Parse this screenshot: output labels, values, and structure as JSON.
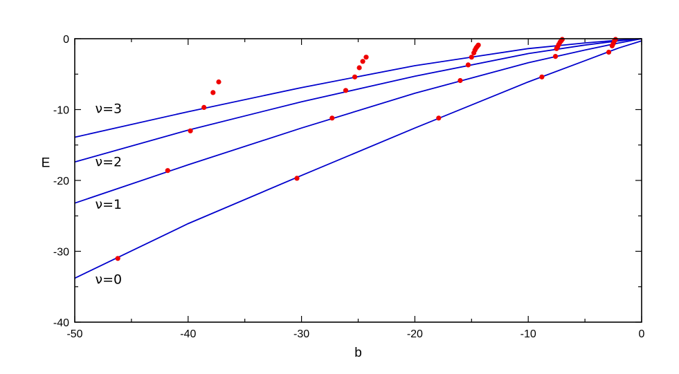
{
  "chart_data": {
    "type": "line",
    "xlabel": "b",
    "ylabel": "E",
    "xlim": [
      -50,
      0
    ],
    "ylim": [
      -40,
      0
    ],
    "xticks": [
      -50,
      -40,
      -30,
      -20,
      -10,
      0
    ],
    "yticks": [
      0,
      -10,
      -20,
      -30,
      -40
    ],
    "grid": false,
    "colors": {
      "curve": "#0000cc",
      "marker": "#ee0000",
      "frame": "#000000"
    },
    "series": [
      {
        "name": "ν=0",
        "x": [
          -50,
          -40,
          -30,
          -20,
          -10,
          -5,
          -2,
          0
        ],
        "y": [
          -33.8,
          -26.1,
          -19.3,
          -12.6,
          -6.1,
          -3.1,
          -1.3,
          -0.3
        ]
      },
      {
        "name": "ν=1",
        "x": [
          -50,
          -40,
          -30,
          -20,
          -10,
          -5,
          -2,
          0
        ],
        "y": [
          -23.2,
          -17.8,
          -12.6,
          -7.7,
          -3.4,
          -1.6,
          -0.6,
          0
        ]
      },
      {
        "name": "ν=2",
        "x": [
          -50,
          -40,
          -30,
          -20,
          -10,
          -5,
          -2,
          0
        ],
        "y": [
          -17.4,
          -12.9,
          -8.9,
          -5.3,
          -2.1,
          -0.9,
          -0.3,
          0
        ]
      },
      {
        "name": "ν=3",
        "x": [
          -50,
          -40,
          -30,
          -20,
          -10,
          -5,
          -2,
          0
        ],
        "y": [
          -13.9,
          -10.3,
          -6.9,
          -3.8,
          -1.4,
          -0.6,
          -0.2,
          0
        ]
      }
    ],
    "markers": {
      "x": [
        -46.2,
        -41.8,
        -30.4,
        -17.9,
        -8.8,
        -2.9,
        -39.8,
        -27.3,
        -16.0,
        -7.6,
        -2.6,
        -38.6,
        -26.1,
        -15.3,
        -7.5,
        -2.5,
        -25.3,
        -24.9,
        -24.6,
        -24.3,
        -15.0,
        -14.8,
        -14.7,
        -14.6,
        -14.5,
        -14.4,
        -37.8,
        -37.3,
        -7.4,
        -7.3,
        -7.2,
        -7.1,
        -7.0,
        -2.4,
        -2.3
      ],
      "y": [
        -31.0,
        -18.6,
        -19.7,
        -11.2,
        -5.4,
        -1.9,
        -13.0,
        -11.2,
        -5.9,
        -2.5,
        -1.0,
        -9.7,
        -7.3,
        -3.7,
        -1.4,
        -0.7,
        -5.4,
        -4.1,
        -3.2,
        -2.6,
        -2.6,
        -2.0,
        -1.6,
        -1.3,
        -1.1,
        -0.9,
        -7.6,
        -6.1,
        -1.1,
        -0.8,
        -0.5,
        -0.3,
        -0.1,
        -0.3,
        -0.1
      ]
    },
    "series_labels": [
      {
        "text": "ν=3",
        "b": -48.2,
        "E": -10.5
      },
      {
        "text": "ν=2",
        "b": -48.2,
        "E": -18.0
      },
      {
        "text": "ν=1",
        "b": -48.2,
        "E": -24.0
      },
      {
        "text": "ν=0",
        "b": -48.2,
        "E": -34.6
      }
    ]
  }
}
